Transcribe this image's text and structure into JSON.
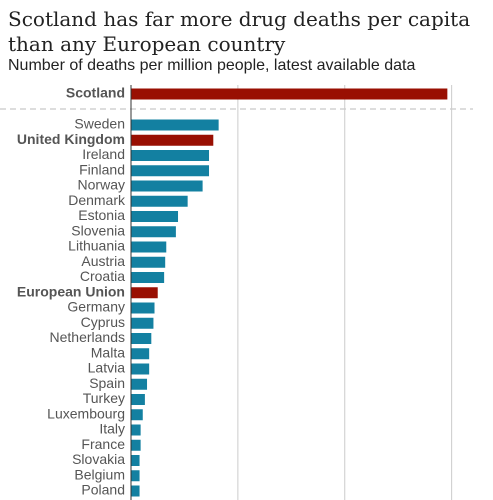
{
  "chart_data": {
    "type": "bar",
    "orientation": "horizontal",
    "title": "Scotland has far more drug deaths per capita than any European country",
    "subtitle": "Number of deaths per million people, latest available data",
    "categories": [
      "Scotland",
      "Sweden",
      "United Kingdom",
      "Ireland",
      "Finland",
      "Norway",
      "Denmark",
      "Estonia",
      "Slovenia",
      "Lithuania",
      "Austria",
      "Croatia",
      "European Union",
      "Germany",
      "Cyprus",
      "Netherlands",
      "Malta",
      "Latvia",
      "Spain",
      "Turkey",
      "Luxembourg",
      "Italy",
      "France",
      "Slovakia",
      "Belgium",
      "Poland"
    ],
    "values": [
      296,
      82,
      77,
      73,
      73,
      67,
      53,
      44,
      42,
      33,
      32,
      31,
      25,
      22,
      21,
      19,
      17,
      17,
      15,
      13,
      11,
      9,
      9,
      8,
      8,
      8
    ],
    "color": "#1380a1",
    "colors": [
      "#990f02",
      "#1380a1",
      "#990f02",
      "#1380a1",
      "#1380a1",
      "#1380a1",
      "#1380a1",
      "#1380a1",
      "#1380a1",
      "#1380a1",
      "#1380a1",
      "#1380a1",
      "#990f02",
      "#1380a1",
      "#1380a1",
      "#1380a1",
      "#1380a1",
      "#1380a1",
      "#1380a1",
      "#1380a1",
      "#1380a1",
      "#1380a1",
      "#1380a1",
      "#1380a1",
      "#1380a1",
      "#1380a1"
    ],
    "xlim": [
      0,
      320
    ],
    "xticks": [
      100,
      200,
      300
    ],
    "grid": true
  }
}
